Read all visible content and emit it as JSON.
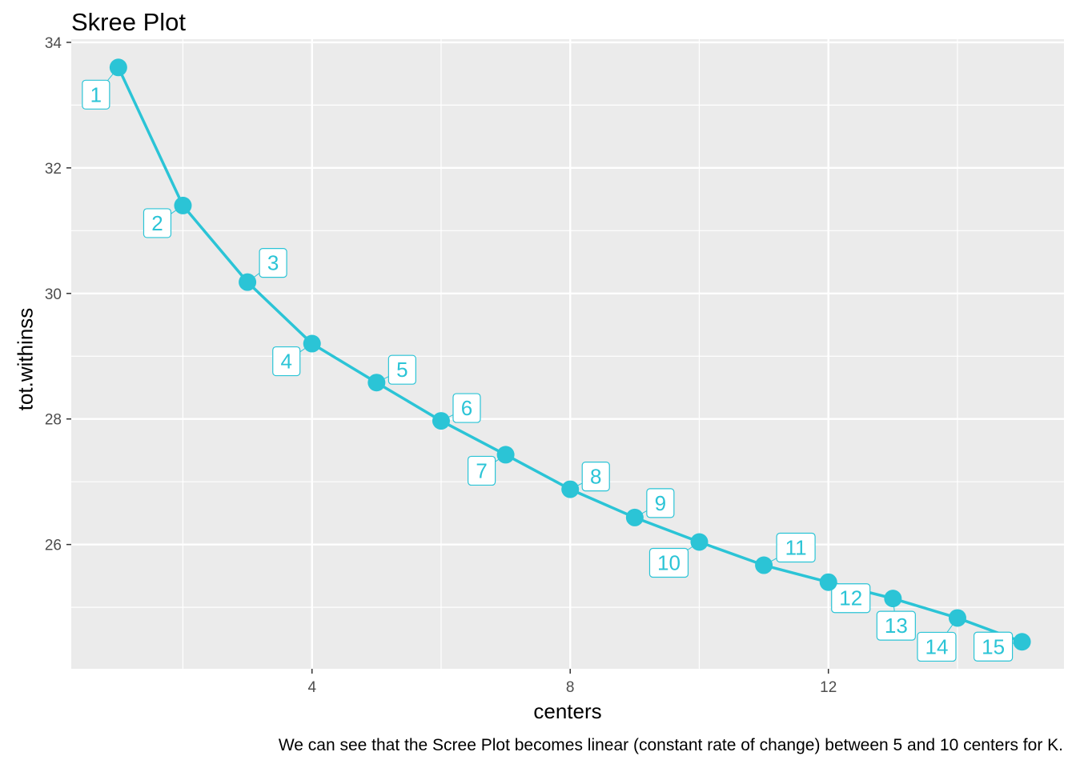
{
  "colors": {
    "panel": "#EBEBEB",
    "grid": "#FFFFFF",
    "series": "#2BC4D6",
    "tick_text": "#4D4D4D"
  },
  "chart_data": {
    "type": "line",
    "title": "Skree Plot",
    "caption": "We can see that the Scree Plot becomes linear (constant rate of change) between 5 and 10 centers for K.",
    "xlabel": "centers",
    "ylabel": "tot.withinss",
    "xlim": [
      0.27,
      15.65
    ],
    "ylim": [
      24.02,
      34.05
    ],
    "x_ticks": [
      4,
      8,
      12
    ],
    "y_ticks": [
      26,
      28,
      30,
      32,
      34
    ],
    "grid": true,
    "series": [
      {
        "x": [
          1,
          2,
          3,
          4,
          5,
          6,
          7,
          8,
          9,
          10,
          11,
          12,
          13,
          14,
          15
        ],
        "y": [
          33.6,
          31.4,
          30.18,
          29.2,
          28.58,
          27.97,
          27.43,
          26.88,
          26.43,
          26.04,
          25.67,
          25.4,
          25.14,
          24.83,
          24.45
        ],
        "point_labels": [
          "1",
          "2",
          "3",
          "4",
          "5",
          "6",
          "7",
          "8",
          "9",
          "10",
          "11",
          "12",
          "13",
          "14",
          "15"
        ]
      }
    ]
  }
}
